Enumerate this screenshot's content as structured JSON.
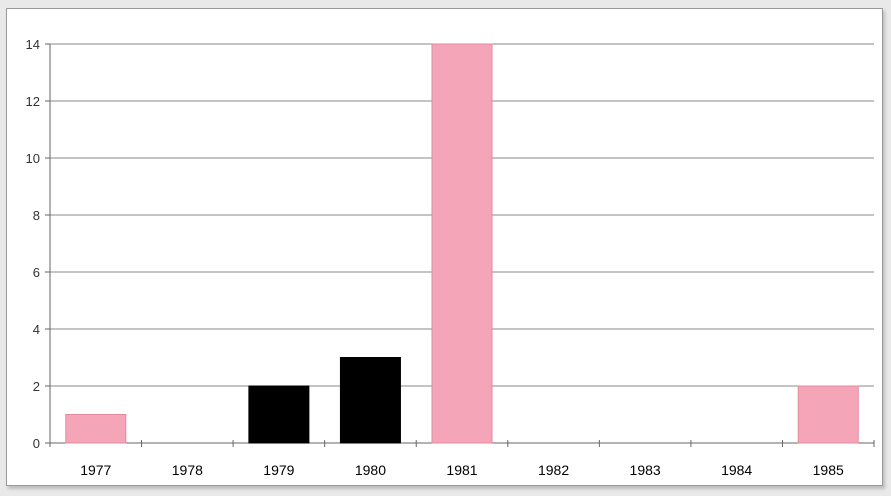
{
  "chart_data": {
    "type": "bar",
    "categories": [
      "1977",
      "1978",
      "1979",
      "1980",
      "1981",
      "1982",
      "1983",
      "1984",
      "1985"
    ],
    "series": [
      {
        "values": [
          1,
          0,
          0,
          0,
          14,
          0,
          0,
          0,
          2
        ]
      },
      {
        "values": [
          0,
          0,
          2,
          3,
          0,
          0,
          0,
          0,
          0
        ]
      }
    ],
    "ylim": [
      0,
      14
    ],
    "yticks": [
      0,
      2,
      4,
      6,
      8,
      10,
      12,
      14
    ],
    "grid": true,
    "legend": "none",
    "colors": [
      "#f4a6b8",
      "#000000"
    ]
  }
}
